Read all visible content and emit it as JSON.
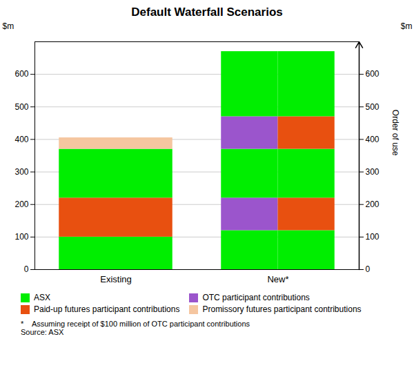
{
  "chart_data": {
    "type": "bar",
    "stacked": true,
    "title": "Default Waterfall Scenarios",
    "categories": [
      "Existing",
      "New*"
    ],
    "series": [
      {
        "name": "ASX",
        "color": "#00EE00"
      },
      {
        "name": "OTC participant contributions",
        "color": "#9B55CC"
      },
      {
        "name": "Paid-up futures participant contributions",
        "color": "#E85010"
      },
      {
        "name": "Promissory futures participant contributions",
        "color": "#F5C6A0"
      }
    ],
    "stacks": [
      [
        [
          {
            "series": "ASX",
            "value": 100
          },
          {
            "series": "Paid-up futures participant contributions",
            "value": 120
          },
          {
            "series": "ASX",
            "value": 150
          },
          {
            "series": "Promissory futures participant contributions",
            "value": 35
          }
        ]
      ],
      [
        [
          {
            "series": "ASX",
            "value": 120
          },
          {
            "series": "OTC participant contributions",
            "value": 100
          },
          {
            "series": "ASX",
            "value": 150
          },
          {
            "series": "OTC participant contributions",
            "value": 100
          },
          {
            "series": "ASX",
            "value": 200
          }
        ],
        [
          {
            "series": "ASX",
            "value": 120
          },
          {
            "series": "Paid-up futures participant contributions",
            "value": 100
          },
          {
            "series": "ASX",
            "value": 150
          },
          {
            "series": "Paid-up futures participant contributions",
            "value": 100
          },
          {
            "series": "ASX",
            "value": 200
          }
        ]
      ]
    ],
    "ylim": [
      0,
      700
    ],
    "yticks": [
      0,
      100,
      200,
      300,
      400,
      500,
      600
    ],
    "y2lim": [
      0,
      700
    ],
    "y2ticks": [
      0,
      100,
      200,
      300,
      400,
      500,
      600
    ],
    "ylabel": "$m",
    "y2label": "$m",
    "y2_title": "Order of use",
    "grid": true,
    "legend": "bottom",
    "footnotes": [
      "*    Assuming receipt of $100 million of OTC participant contributions",
      "Source: ASX"
    ]
  }
}
